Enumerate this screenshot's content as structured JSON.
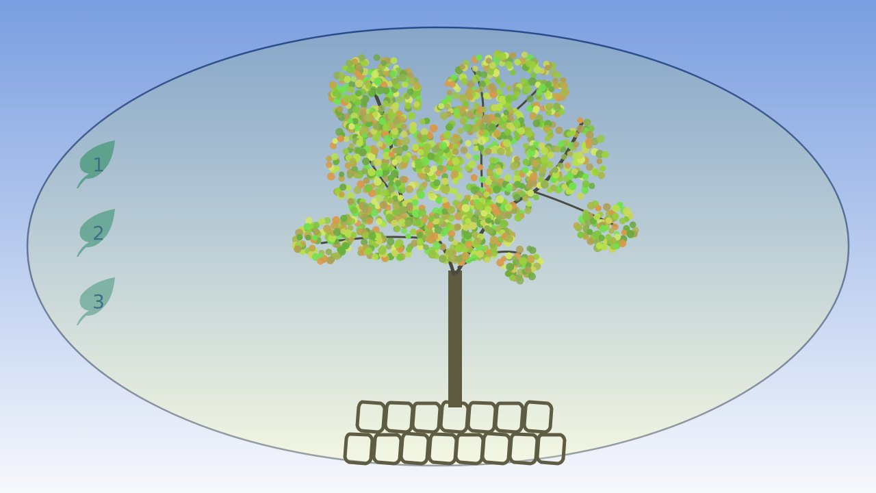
{
  "colors": {
    "sky_top": "#7a9ee0",
    "sky_bottom": "#f7f8fc",
    "dome_top": "#86a6c9",
    "dome_bottom": "#f4f7e2",
    "dome_stroke_top": "#274a8c",
    "dome_stroke_bottom": "#9aa0a4",
    "trunk": "#5d5a3f",
    "branch": "#4a4b40",
    "stone": "#5e5c43",
    "stone_fill": "#f2f5e6",
    "leaf_icon": "#5aa08a",
    "leaf_label": "#3f6e86",
    "foliage": [
      "#9bd13a",
      "#b7e04a",
      "#7fc63d",
      "#c9d65a",
      "#a8b84d",
      "#8fb050",
      "#6fa845",
      "#c2a74a",
      "#d4e866",
      "#72e050",
      "#b0a055",
      "#98c840",
      "#6ab03c",
      "#d89a4a"
    ]
  },
  "levels": [
    {
      "label": "1",
      "icon": "leaf-icon",
      "opacity": 0.95
    },
    {
      "label": "2",
      "icon": "leaf-icon",
      "opacity": 0.8
    },
    {
      "label": "3",
      "icon": "leaf-icon",
      "opacity": 0.65
    }
  ]
}
